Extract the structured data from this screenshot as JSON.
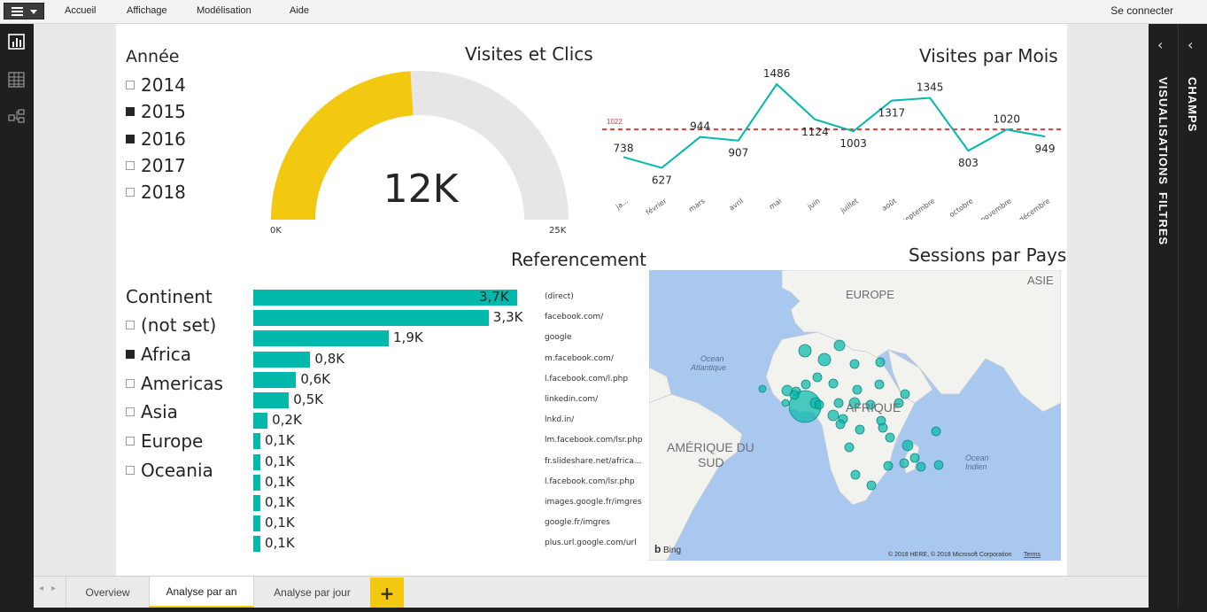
{
  "menu": {
    "items": [
      "Accueil",
      "Affichage",
      "Modélisation",
      "Aide"
    ],
    "signin": "Se connecter"
  },
  "rail": {
    "items": [
      "report-view-icon",
      "data-view-icon",
      "relationships-view-icon"
    ]
  },
  "right_panes": {
    "visualisations": "VISUALISATIONS",
    "filtres": "FILTRES",
    "champs": "CHAMPS"
  },
  "tabs": {
    "items": [
      "Overview",
      "Analyse par an",
      "Analyse par jour"
    ],
    "active": "Analyse par an",
    "add": "+"
  },
  "year_slicer": {
    "title": "Année",
    "items": [
      {
        "label": "2014",
        "selected": false
      },
      {
        "label": "2015",
        "selected": true
      },
      {
        "label": "2016",
        "selected": true
      },
      {
        "label": "2017",
        "selected": false
      },
      {
        "label": "2018",
        "selected": false
      }
    ]
  },
  "gauge": {
    "title": "Visites et Clics",
    "value_label": "12K",
    "min_label": "0K",
    "max_label": "25K",
    "value": 12000,
    "min": 0,
    "max": 25000,
    "fill_color": "#f2c811",
    "track_color": "#e6e6e6"
  },
  "continent_slicer": {
    "title": "Continent",
    "items": [
      {
        "label": "(not set)",
        "selected": false
      },
      {
        "label": "Africa",
        "selected": true
      },
      {
        "label": "Americas",
        "selected": false
      },
      {
        "label": "Asia",
        "selected": false
      },
      {
        "label": "Europe",
        "selected": false
      },
      {
        "label": "Oceania",
        "selected": false
      }
    ]
  },
  "referencement": {
    "title": "Referencement",
    "bar_color": "#01b8aa",
    "rows": [
      {
        "source": "(direct)",
        "value": 3.7,
        "label": "3,7K"
      },
      {
        "source": "facebook.com/",
        "value": 3.3,
        "label": "3,3K"
      },
      {
        "source": "google",
        "value": 1.9,
        "label": "1,9K"
      },
      {
        "source": "m.facebook.com/",
        "value": 0.8,
        "label": "0,8K"
      },
      {
        "source": "l.facebook.com/l.php",
        "value": 0.6,
        "label": "0,6K"
      },
      {
        "source": "linkedin.com/",
        "value": 0.5,
        "label": "0,5K"
      },
      {
        "source": "lnkd.in/",
        "value": 0.2,
        "label": "0,2K"
      },
      {
        "source": "lm.facebook.com/lsr.php",
        "value": 0.1,
        "label": "0,1K"
      },
      {
        "source": "fr.slideshare.net/africa...",
        "value": 0.1,
        "label": "0,1K"
      },
      {
        "source": "l.facebook.com/lsr.php",
        "value": 0.1,
        "label": "0,1K"
      },
      {
        "source": "images.google.fr/imgres",
        "value": 0.1,
        "label": "0,1K"
      },
      {
        "source": "google.fr/imgres",
        "value": 0.1,
        "label": "0,1K"
      },
      {
        "source": "plus.url.google.com/url",
        "value": 0.1,
        "label": "0,1K"
      }
    ]
  },
  "chart_data": {
    "type": "line",
    "title": "Visites par Mois",
    "categories": [
      "ja...",
      "février",
      "mars",
      "avril",
      "mai",
      "juin",
      "juillet",
      "août",
      "septembre",
      "octobre",
      "novembre",
      "décembre"
    ],
    "values": [
      738,
      627,
      944,
      907,
      1486,
      1124,
      1003,
      1317,
      1345,
      803,
      1020,
      949
    ],
    "reference_line": {
      "value": 1022,
      "label": "1022",
      "color": "#e03b3b"
    },
    "line_color": "#01b8aa",
    "grid": false,
    "show_y_axis": false,
    "ylim": [
      550,
      1550
    ]
  },
  "map": {
    "title": "Sessions par Pays",
    "labels": {
      "europe": "EUROPE",
      "asie": "ASIE",
      "afrique": "AFRIQUE",
      "amerique_sud_1": "AMÉRIQUE DU",
      "amerique_sud_2": "SUD",
      "ocean_atl_1": "Ocean",
      "ocean_atl_2": "Atlantique",
      "ocean_ind_1": "Ocean",
      "ocean_ind_2": "Indien"
    },
    "bing": "Bing",
    "copyright": "© 2018 HERE, © 2018 Microsoft Corporation",
    "terms": "Terms",
    "bubble_color": "#01b8aa",
    "water_color": "#a9c8f0",
    "land_color": "#f2f2ef"
  }
}
